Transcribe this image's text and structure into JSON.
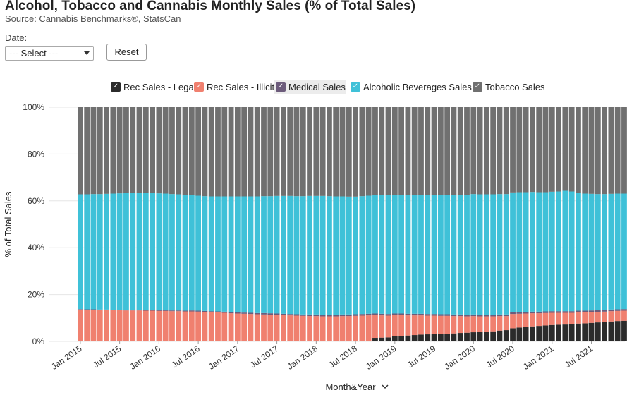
{
  "header": {
    "title": "Alcohol, Tobacco and Cannabis Monthly Sales (% of Total Sales)",
    "subtitle": "Source: Cannabis Benchmarks®, StatsCan"
  },
  "filters": {
    "date_label": "Date:",
    "date_selected": "--- Select ---",
    "reset_label": "Reset"
  },
  "legend": [
    {
      "label": "Rec Sales - Legal",
      "color": "#2b2b2b",
      "check": "✓"
    },
    {
      "label": "Rec Sales - Illicit",
      "color": "#f0806f",
      "check": "✓"
    },
    {
      "label": "Medical Sales",
      "color": "#6c5b7b",
      "check": "✓"
    },
    {
      "label": "Alcoholic Beverages Sales",
      "color": "#3fc1d8",
      "check": "✓"
    },
    {
      "label": "Tobacco Sales",
      "color": "#707070",
      "check": "✓"
    }
  ],
  "axis": {
    "x_title": "Month&Year",
    "x_title_icon": "chevron-down-icon",
    "y_title": "% of Total Sales"
  },
  "chart_data": {
    "type": "bar",
    "stacked": true,
    "percent_stacked": true,
    "ylabel": "% of Total Sales",
    "xlabel": "Month&Year",
    "ylim": [
      0,
      100
    ],
    "y_ticks": [
      "0%",
      "20%",
      "40%",
      "60%",
      "80%",
      "100%"
    ],
    "x_tick_labels": [
      "Jan 2015",
      "Jul 2015",
      "Jan 2016",
      "Jul 2016",
      "Jan 2017",
      "Jul 2017",
      "Jan 2018",
      "Jul 2018",
      "Jan 2019",
      "Jul 2019",
      "Jan 2020",
      "Jul 2020",
      "Jan 2021",
      "Jul 2021"
    ],
    "categories": [
      "Jan 2015",
      "Feb 2015",
      "Mar 2015",
      "Apr 2015",
      "May 2015",
      "Jun 2015",
      "Jul 2015",
      "Aug 2015",
      "Sep 2015",
      "Oct 2015",
      "Nov 2015",
      "Dec 2015",
      "Jan 2016",
      "Feb 2016",
      "Mar 2016",
      "Apr 2016",
      "May 2016",
      "Jun 2016",
      "Jul 2016",
      "Aug 2016",
      "Sep 2016",
      "Oct 2016",
      "Nov 2016",
      "Dec 2016",
      "Jan 2017",
      "Feb 2017",
      "Mar 2017",
      "Apr 2017",
      "May 2017",
      "Jun 2017",
      "Jul 2017",
      "Aug 2017",
      "Sep 2017",
      "Oct 2017",
      "Nov 2017",
      "Dec 2017",
      "Jan 2018",
      "Feb 2018",
      "Mar 2018",
      "Apr 2018",
      "May 2018",
      "Jun 2018",
      "Jul 2018",
      "Aug 2018",
      "Sep 2018",
      "Oct 2018",
      "Nov 2018",
      "Dec 2018",
      "Jan 2019",
      "Feb 2019",
      "Mar 2019",
      "Apr 2019",
      "May 2019",
      "Jun 2019",
      "Jul 2019",
      "Aug 2019",
      "Sep 2019",
      "Oct 2019",
      "Nov 2019",
      "Dec 2019",
      "Jan 2020",
      "Feb 2020",
      "Mar 2020",
      "Apr 2020",
      "May 2020",
      "Jun 2020",
      "Jul 2020",
      "Aug 2020",
      "Sep 2020",
      "Oct 2020",
      "Nov 2020",
      "Dec 2020",
      "Jan 2021",
      "Feb 2021",
      "Mar 2021",
      "Apr 2021",
      "May 2021",
      "Jun 2021",
      "Jul 2021",
      "Aug 2021",
      "Sep 2021",
      "Oct 2021",
      "Nov 2021",
      "Dec 2021"
    ],
    "series": [
      {
        "name": "Rec Sales - Legal",
        "color": "#2b2b2b",
        "values": [
          0,
          0,
          0,
          0,
          0,
          0,
          0,
          0,
          0,
          0,
          0,
          0,
          0,
          0,
          0,
          0,
          0,
          0,
          0,
          0,
          0,
          0,
          0,
          0,
          0,
          0,
          0,
          0,
          0,
          0,
          0,
          0,
          0,
          0,
          0,
          0,
          0,
          0,
          0,
          0,
          0,
          0,
          0,
          0,
          0,
          1.5,
          1.6,
          1.7,
          2.2,
          2.4,
          2.5,
          2.7,
          2.9,
          3.0,
          3.1,
          3.2,
          3.3,
          3.4,
          3.6,
          3.7,
          3.9,
          4.0,
          4.2,
          4.3,
          4.6,
          4.8,
          5.6,
          5.9,
          6.1,
          6.4,
          6.6,
          6.8,
          7.0,
          7.1,
          7.2,
          7.3,
          7.6,
          7.7,
          7.9,
          8.1,
          8.3,
          8.5,
          8.7,
          8.8
        ]
      },
      {
        "name": "Rec Sales - Illicit",
        "color": "#f0806f",
        "values": [
          13.6,
          13.5,
          13.5,
          13.4,
          13.4,
          13.3,
          13.3,
          13.2,
          13.2,
          13.2,
          13.1,
          13.1,
          13.0,
          13.0,
          12.9,
          12.9,
          12.8,
          12.8,
          12.7,
          12.6,
          12.5,
          12.4,
          12.2,
          12.0,
          11.9,
          11.8,
          11.7,
          11.6,
          11.5,
          11.4,
          11.3,
          11.2,
          11.1,
          11.0,
          10.9,
          10.8,
          10.8,
          10.7,
          10.7,
          10.7,
          10.8,
          10.8,
          10.9,
          11.0,
          11.1,
          9.7,
          9.5,
          9.3,
          9.0,
          8.8,
          8.6,
          8.4,
          8.2,
          8.0,
          7.9,
          7.7,
          7.6,
          7.4,
          7.2,
          7.0,
          6.9,
          6.7,
          6.5,
          6.4,
          6.2,
          6.0,
          6.1,
          5.9,
          5.8,
          5.6,
          5.4,
          5.3,
          5.2,
          5.1,
          5.0,
          4.9,
          4.8,
          4.7,
          4.6,
          4.5,
          4.4,
          4.4,
          4.3,
          4.3
        ]
      },
      {
        "name": "Medical Sales",
        "color": "#6c5b7b",
        "values": [
          0.2,
          0.2,
          0.2,
          0.2,
          0.2,
          0.2,
          0.2,
          0.2,
          0.2,
          0.3,
          0.3,
          0.3,
          0.3,
          0.3,
          0.3,
          0.3,
          0.3,
          0.4,
          0.4,
          0.4,
          0.4,
          0.4,
          0.5,
          0.5,
          0.5,
          0.5,
          0.5,
          0.5,
          0.6,
          0.6,
          0.6,
          0.6,
          0.6,
          0.6,
          0.6,
          0.7,
          0.7,
          0.7,
          0.7,
          0.7,
          0.7,
          0.7,
          0.7,
          0.7,
          0.7,
          0.7,
          0.7,
          0.7,
          0.7,
          0.7,
          0.7,
          0.7,
          0.7,
          0.7,
          0.7,
          0.7,
          0.7,
          0.7,
          0.7,
          0.7,
          0.7,
          0.7,
          0.7,
          0.7,
          0.7,
          0.7,
          0.7,
          0.7,
          0.7,
          0.7,
          0.7,
          0.7,
          0.7,
          0.7,
          0.7,
          0.7,
          0.7,
          0.7,
          0.7,
          0.7,
          0.7,
          0.7,
          0.7,
          0.7
        ]
      },
      {
        "name": "Alcoholic Beverages Sales",
        "color": "#3fc1d8",
        "values": [
          49.0,
          49.1,
          49.2,
          49.3,
          49.4,
          49.6,
          49.7,
          49.9,
          50.0,
          50.0,
          50.0,
          49.9,
          49.9,
          49.8,
          49.7,
          49.6,
          49.5,
          49.3,
          49.1,
          49.0,
          49.0,
          49.1,
          49.2,
          49.4,
          49.5,
          49.6,
          49.7,
          49.8,
          49.9,
          50.0,
          50.2,
          50.3,
          50.4,
          50.4,
          50.5,
          50.6,
          50.6,
          50.7,
          50.6,
          50.5,
          50.4,
          50.3,
          50.2,
          50.3,
          50.4,
          50.5,
          50.6,
          50.7,
          50.6,
          50.6,
          50.7,
          50.7,
          50.8,
          50.8,
          50.8,
          50.9,
          51.0,
          51.0,
          51.1,
          51.2,
          51.4,
          51.4,
          51.4,
          51.4,
          51.4,
          51.4,
          51.2,
          51.2,
          51.1,
          51.1,
          51.0,
          50.9,
          51.0,
          51.1,
          51.4,
          51.1,
          50.4,
          50.0,
          49.8,
          49.6,
          49.5,
          49.4,
          49.4,
          49.3
        ]
      },
      {
        "name": "Tobacco Sales",
        "color": "#707070",
        "values": [
          37.2,
          37.2,
          37.1,
          37.1,
          37.0,
          36.9,
          36.8,
          36.7,
          36.6,
          36.5,
          36.6,
          36.7,
          36.8,
          36.9,
          37.1,
          37.2,
          37.4,
          37.5,
          37.8,
          38.0,
          38.1,
          38.1,
          38.1,
          38.1,
          38.1,
          38.1,
          38.1,
          38.1,
          38.0,
          38.0,
          37.9,
          37.9,
          37.9,
          38.0,
          38.0,
          37.9,
          37.9,
          37.9,
          38.0,
          38.1,
          38.1,
          38.2,
          38.2,
          38.0,
          37.8,
          37.6,
          37.6,
          37.6,
          37.5,
          37.5,
          37.5,
          37.5,
          37.4,
          37.5,
          37.5,
          37.5,
          37.4,
          37.5,
          37.4,
          37.4,
          37.1,
          37.2,
          37.2,
          37.2,
          37.1,
          37.1,
          36.4,
          36.3,
          36.3,
          36.2,
          36.3,
          36.3,
          36.1,
          36.0,
          35.7,
          36.0,
          36.5,
          36.9,
          37.0,
          37.1,
          37.1,
          37.0,
          36.9,
          36.9
        ]
      }
    ],
    "grid": true,
    "legend_position": "top"
  }
}
